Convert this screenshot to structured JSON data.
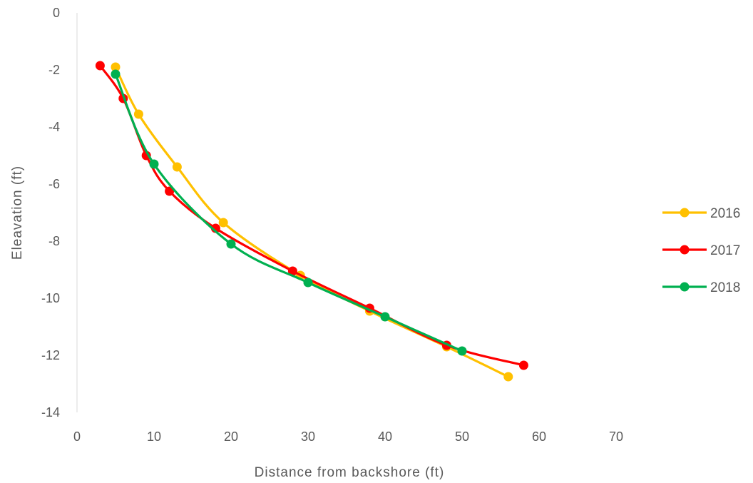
{
  "chart_data": {
    "type": "line",
    "xlabel": "Distance from backshore (ft)",
    "ylabel": "Eleavation (ft)",
    "xlim": [
      0,
      70
    ],
    "ylim": [
      -14,
      0
    ],
    "x_ticks": [
      0,
      10,
      20,
      30,
      40,
      50,
      60,
      70
    ],
    "y_ticks": [
      0,
      -2,
      -4,
      -6,
      -8,
      -10,
      -12,
      -14
    ],
    "x_tick_labels": [
      "0",
      "10",
      "20",
      "30",
      "40",
      "50",
      "60",
      "70"
    ],
    "y_tick_labels": [
      "0",
      "-2",
      "-4",
      "-6",
      "-8",
      "-10",
      "-12",
      "-14"
    ],
    "grid": false,
    "legend_position": "right",
    "smoothed": true,
    "series": [
      {
        "name": "2016",
        "color": "#FFC000",
        "points": [
          [
            5,
            -1.9
          ],
          [
            8,
            -3.55
          ],
          [
            13,
            -5.4
          ],
          [
            19,
            -7.35
          ],
          [
            29,
            -9.2
          ],
          [
            38,
            -10.45
          ],
          [
            48,
            -11.7
          ],
          [
            56,
            -12.75
          ]
        ]
      },
      {
        "name": "2017",
        "color": "#FF0000",
        "points": [
          [
            3,
            -1.85
          ],
          [
            6,
            -3.0
          ],
          [
            9,
            -5.0
          ],
          [
            12,
            -6.25
          ],
          [
            18,
            -7.55
          ],
          [
            28,
            -9.05
          ],
          [
            38,
            -10.35
          ],
          [
            48,
            -11.65
          ],
          [
            58,
            -12.35
          ]
        ]
      },
      {
        "name": "2018",
        "color": "#00B050",
        "points": [
          [
            5,
            -2.15
          ],
          [
            10,
            -5.3
          ],
          [
            20,
            -8.1
          ],
          [
            30,
            -9.45
          ],
          [
            40,
            -10.65
          ],
          [
            50,
            -11.85
          ]
        ]
      }
    ]
  }
}
